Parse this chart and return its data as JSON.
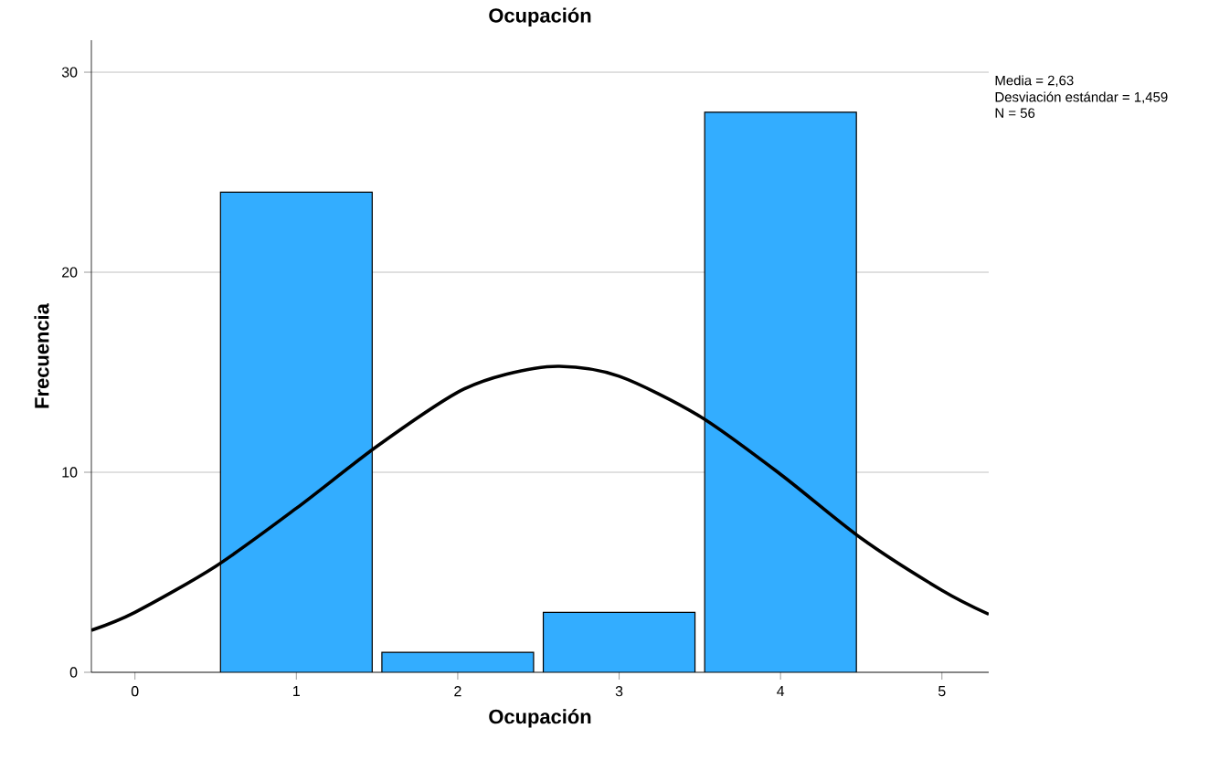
{
  "chart_data": {
    "type": "histogram",
    "title": "Ocupación",
    "xlabel": "Ocupación",
    "ylabel": "Frecuencia",
    "bins": [
      0.5,
      1.5,
      2.5,
      3.5,
      4.5
    ],
    "values": [
      24,
      1,
      3,
      28
    ],
    "color": "#33adff",
    "series": [
      {
        "type": "line",
        "color": "#000000",
        "x": [
          -0.27,
          0,
          0.5,
          1,
          1.5,
          2,
          2.3,
          2.63,
          3,
          3.5,
          4,
          4.5,
          5,
          5.29
        ],
        "values": [
          2.1,
          3.0,
          5.3,
          8.2,
          11.3,
          14.0,
          14.9,
          15.3,
          14.8,
          12.8,
          9.9,
          6.7,
          4.1,
          2.9
        ]
      }
    ],
    "xlim": [
      -0.27,
      5.29
    ],
    "ylim": [
      0,
      31.6
    ],
    "xticks": [
      0,
      1,
      2,
      3,
      4,
      5
    ],
    "yticks": [
      0,
      10,
      20,
      30
    ],
    "grid": "y",
    "annotations": [
      "Media = 2,63",
      "Desviación estándar = 1,459",
      "N = 56"
    ]
  }
}
